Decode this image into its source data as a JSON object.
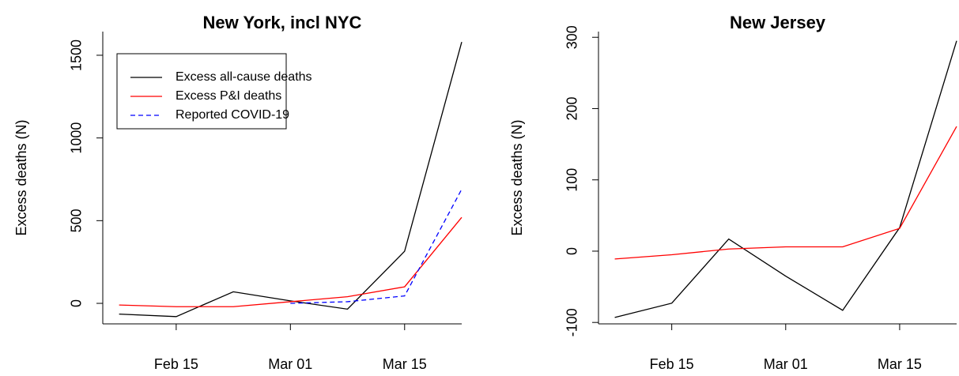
{
  "chart_data": [
    {
      "type": "line",
      "title": "New York, incl NYC",
      "ylabel": "Excess deaths (N)",
      "x": [
        "Feb 08",
        "Feb 15",
        "Feb 22",
        "Mar 01",
        "Mar 08",
        "Mar 15",
        "Mar 22"
      ],
      "xlim": [
        "Feb 06",
        "Mar 22"
      ],
      "xticks": [
        "Feb 15",
        "Mar 01",
        "Mar 15"
      ],
      "ylim": [
        -124,
        1643
      ],
      "yticks": [
        0,
        500,
        1000,
        1500
      ],
      "legend": "topleft",
      "series": [
        {
          "name": "Excess all-cause deaths",
          "color": "#000000",
          "linestyle": "solid",
          "values": [
            -65,
            -80,
            70,
            15,
            -35,
            315,
            1580
          ]
        },
        {
          "name": "Excess P&I deaths",
          "color": "#ff0000",
          "linestyle": "solid",
          "values": [
            -10,
            -20,
            -20,
            10,
            40,
            100,
            520
          ]
        },
        {
          "name": "Reported COVID-19",
          "color": "#0000ff",
          "linestyle": "dashed",
          "values": [
            null,
            null,
            null,
            0,
            10,
            45,
            690
          ]
        }
      ]
    },
    {
      "type": "line",
      "title": "New Jersey",
      "ylabel": "Excess deaths (N)",
      "x": [
        "Feb 08",
        "Feb 15",
        "Feb 22",
        "Mar 01",
        "Mar 08",
        "Mar 15",
        "Mar 22"
      ],
      "xlim": [
        "Feb 06",
        "Mar 22"
      ],
      "xticks": [
        "Feb 15",
        "Mar 01",
        "Mar 15"
      ],
      "ylim": [
        -102,
        308
      ],
      "yticks": [
        -100,
        0,
        100,
        200,
        300
      ],
      "series": [
        {
          "color": "#000000",
          "linestyle": "solid",
          "values": [
            -93,
            -73,
            17,
            -35,
            -83,
            33,
            295
          ]
        },
        {
          "color": "#ff0000",
          "linestyle": "solid",
          "values": [
            -11,
            -5,
            3,
            6,
            6,
            32,
            175
          ]
        }
      ]
    }
  ]
}
